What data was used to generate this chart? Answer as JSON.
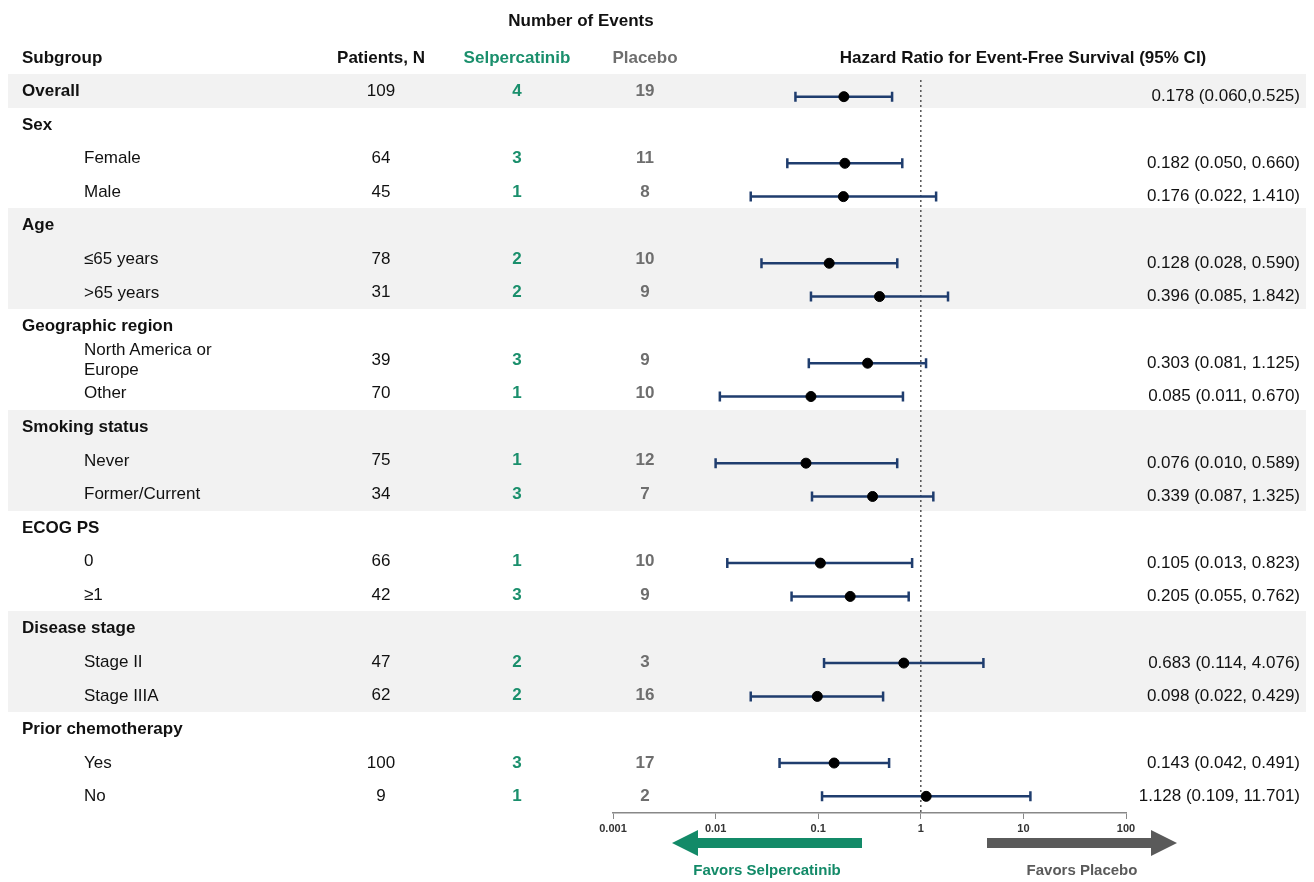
{
  "chart_data": [
    {
      "type": "other",
      "title": "Number of Events",
      "categories": [
        "Patients, N",
        "Selpercatinib",
        "Placebo"
      ],
      "colors": [
        "#111111",
        "#1a8f6c",
        "#6e6e6e"
      ],
      "cell_labels": [
        [
          "109",
          "4",
          "19"
        ],
        [
          null,
          null,
          null
        ],
        [
          "64",
          "3",
          "11"
        ],
        [
          "45",
          "1",
          "8"
        ],
        [
          null,
          null,
          null
        ],
        [
          "78",
          "2",
          "10"
        ],
        [
          "31",
          "2",
          "9"
        ],
        [
          null,
          null,
          null
        ],
        [
          "39",
          "3",
          "9"
        ],
        [
          "70",
          "1",
          "10"
        ],
        [
          null,
          null,
          null
        ],
        [
          "75",
          "1",
          "12"
        ],
        [
          "34",
          "3",
          "7"
        ],
        [
          null,
          null,
          null
        ],
        [
          "66",
          "1",
          "10"
        ],
        [
          "42",
          "3",
          "9"
        ],
        [
          null,
          null,
          null
        ],
        [
          "47",
          "2",
          "3"
        ],
        [
          "62",
          "2",
          "16"
        ],
        [
          null,
          null,
          null
        ],
        [
          "100",
          "3",
          "17"
        ],
        [
          "9",
          "1",
          "2"
        ]
      ]
    },
    {
      "type": "scatter",
      "title": "Hazard Ratio for Event-Free Survival (95% CI)",
      "ylabel": "Subgroup",
      "orientation": "horizontal",
      "categories": [
        "Overall",
        "Sex",
        "Female",
        "Male",
        "Age",
        "≤65 years",
        ">65 years",
        "Geographic region",
        "North America or Europe",
        "Other",
        "Smoking status",
        "Never",
        "Former/Current",
        "ECOG PS",
        "0",
        "≥1",
        "Disease stage",
        "Stage II",
        "Stage IIIA",
        "Prior chemotherapy",
        "Yes",
        "No"
      ],
      "values": [
        0.178,
        null,
        0.182,
        0.176,
        null,
        0.128,
        0.396,
        null,
        0.303,
        0.085,
        null,
        0.076,
        0.339,
        null,
        0.105,
        0.205,
        null,
        0.683,
        0.098,
        null,
        0.143,
        1.128
      ],
      "errors": [
        [
          0.06,
          0.525
        ],
        null,
        [
          0.05,
          0.66
        ],
        [
          0.022,
          1.41
        ],
        null,
        [
          0.028,
          0.59
        ],
        [
          0.085,
          1.842
        ],
        null,
        [
          0.081,
          1.125
        ],
        [
          0.011,
          0.67
        ],
        null,
        [
          0.01,
          0.589
        ],
        [
          0.087,
          1.325
        ],
        null,
        [
          0.013,
          0.823
        ],
        [
          0.055,
          0.762
        ],
        null,
        [
          0.114,
          4.076
        ],
        [
          0.022,
          0.429
        ],
        null,
        [
          0.042,
          0.491
        ],
        [
          0.109,
          11.701
        ]
      ],
      "value_labels": [
        "0.178 (0.060,0.525)",
        null,
        "0.182 (0.050, 0.660)",
        "0.176 (0.022, 1.410)",
        null,
        "0.128 (0.028, 0.590)",
        "0.396 (0.085, 1.842)",
        null,
        "0.303 (0.081, 1.125)",
        "0.085 (0.011, 0.670)",
        null,
        "0.076 (0.010, 0.589)",
        "0.339 (0.087, 1.325)",
        null,
        "0.105 (0.013, 0.823)",
        "0.205 (0.055, 0.762)",
        null,
        "0.683 (0.114, 4.076)",
        "0.098 (0.022, 0.429)",
        null,
        "0.143 (0.042, 0.491)",
        "1.128 (0.109, 11.701)"
      ],
      "color": "#000000",
      "marker": "circle",
      "log": "x",
      "xlim": [
        0.001,
        100
      ],
      "xticks": [
        0.001,
        0.01,
        0.1,
        1,
        10,
        100
      ],
      "tick_labels": "x",
      "ref_lines": [
        {
          "axis": "x",
          "value": 1,
          "line_style": "dotted",
          "color": "#555555"
        }
      ],
      "bands": [
        {
          "axis": "y",
          "from": "Overall",
          "to": "Overall",
          "color": "#f2f2f2"
        },
        {
          "axis": "y",
          "from": "Age",
          "to": ">65 years",
          "color": "#f2f2f2"
        },
        {
          "axis": "y",
          "from": "Smoking status",
          "to": "Former/Current",
          "color": "#f2f2f2"
        },
        {
          "axis": "y",
          "from": "Disease stage",
          "to": "Stage IIIA",
          "color": "#f2f2f2"
        }
      ],
      "annotations": [
        "Favors Selpercatinib",
        "Favors Placebo"
      ]
    }
  ]
}
